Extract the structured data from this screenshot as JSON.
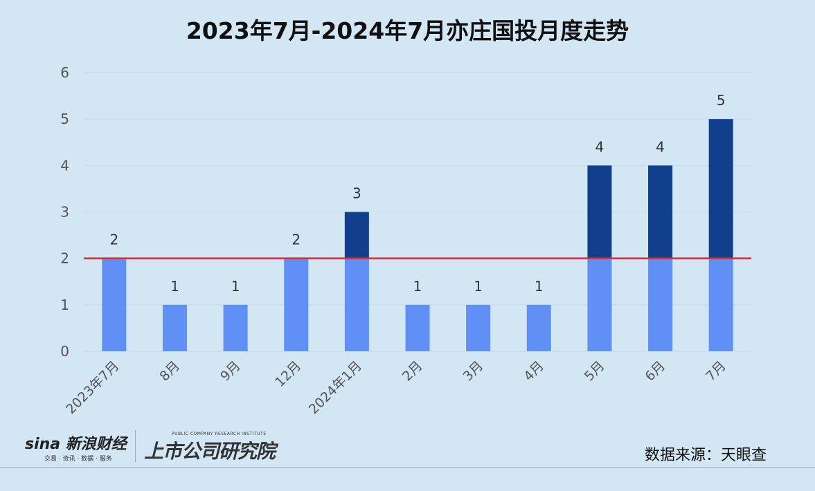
{
  "chart_data": {
    "type": "bar",
    "title": "2023年7月-2024年7月亦庄国投月度走势",
    "categories": [
      "2023年7月",
      "8月",
      "9月",
      "12月",
      "2024年1月",
      "2月",
      "3月",
      "4月",
      "5月",
      "6月",
      "7月"
    ],
    "values": [
      2,
      1,
      1,
      2,
      3,
      1,
      1,
      1,
      4,
      4,
      5
    ],
    "ylim": [
      0,
      6
    ],
    "yticks": [
      "0",
      "1",
      "2",
      "3",
      "4",
      "5",
      "6"
    ],
    "grid": true,
    "reference_line": 2,
    "stacked_split_at_reference": true,
    "colors": {
      "below": "#6090f5",
      "above": "#123f8c",
      "reference_line": "#c8323c",
      "background": "#d3e6f4"
    },
    "xlabel": "",
    "ylabel": ""
  },
  "footer": {
    "source": "数据来源：天眼查",
    "sina_logo": "sina 新浪财经",
    "sina_sub": "交易 · 资讯 · 数据 · 服务",
    "institute_en": "PUBLIC COMPANY RESEARCH INSTITUTE",
    "institute_cn": "上市公司研究院"
  }
}
